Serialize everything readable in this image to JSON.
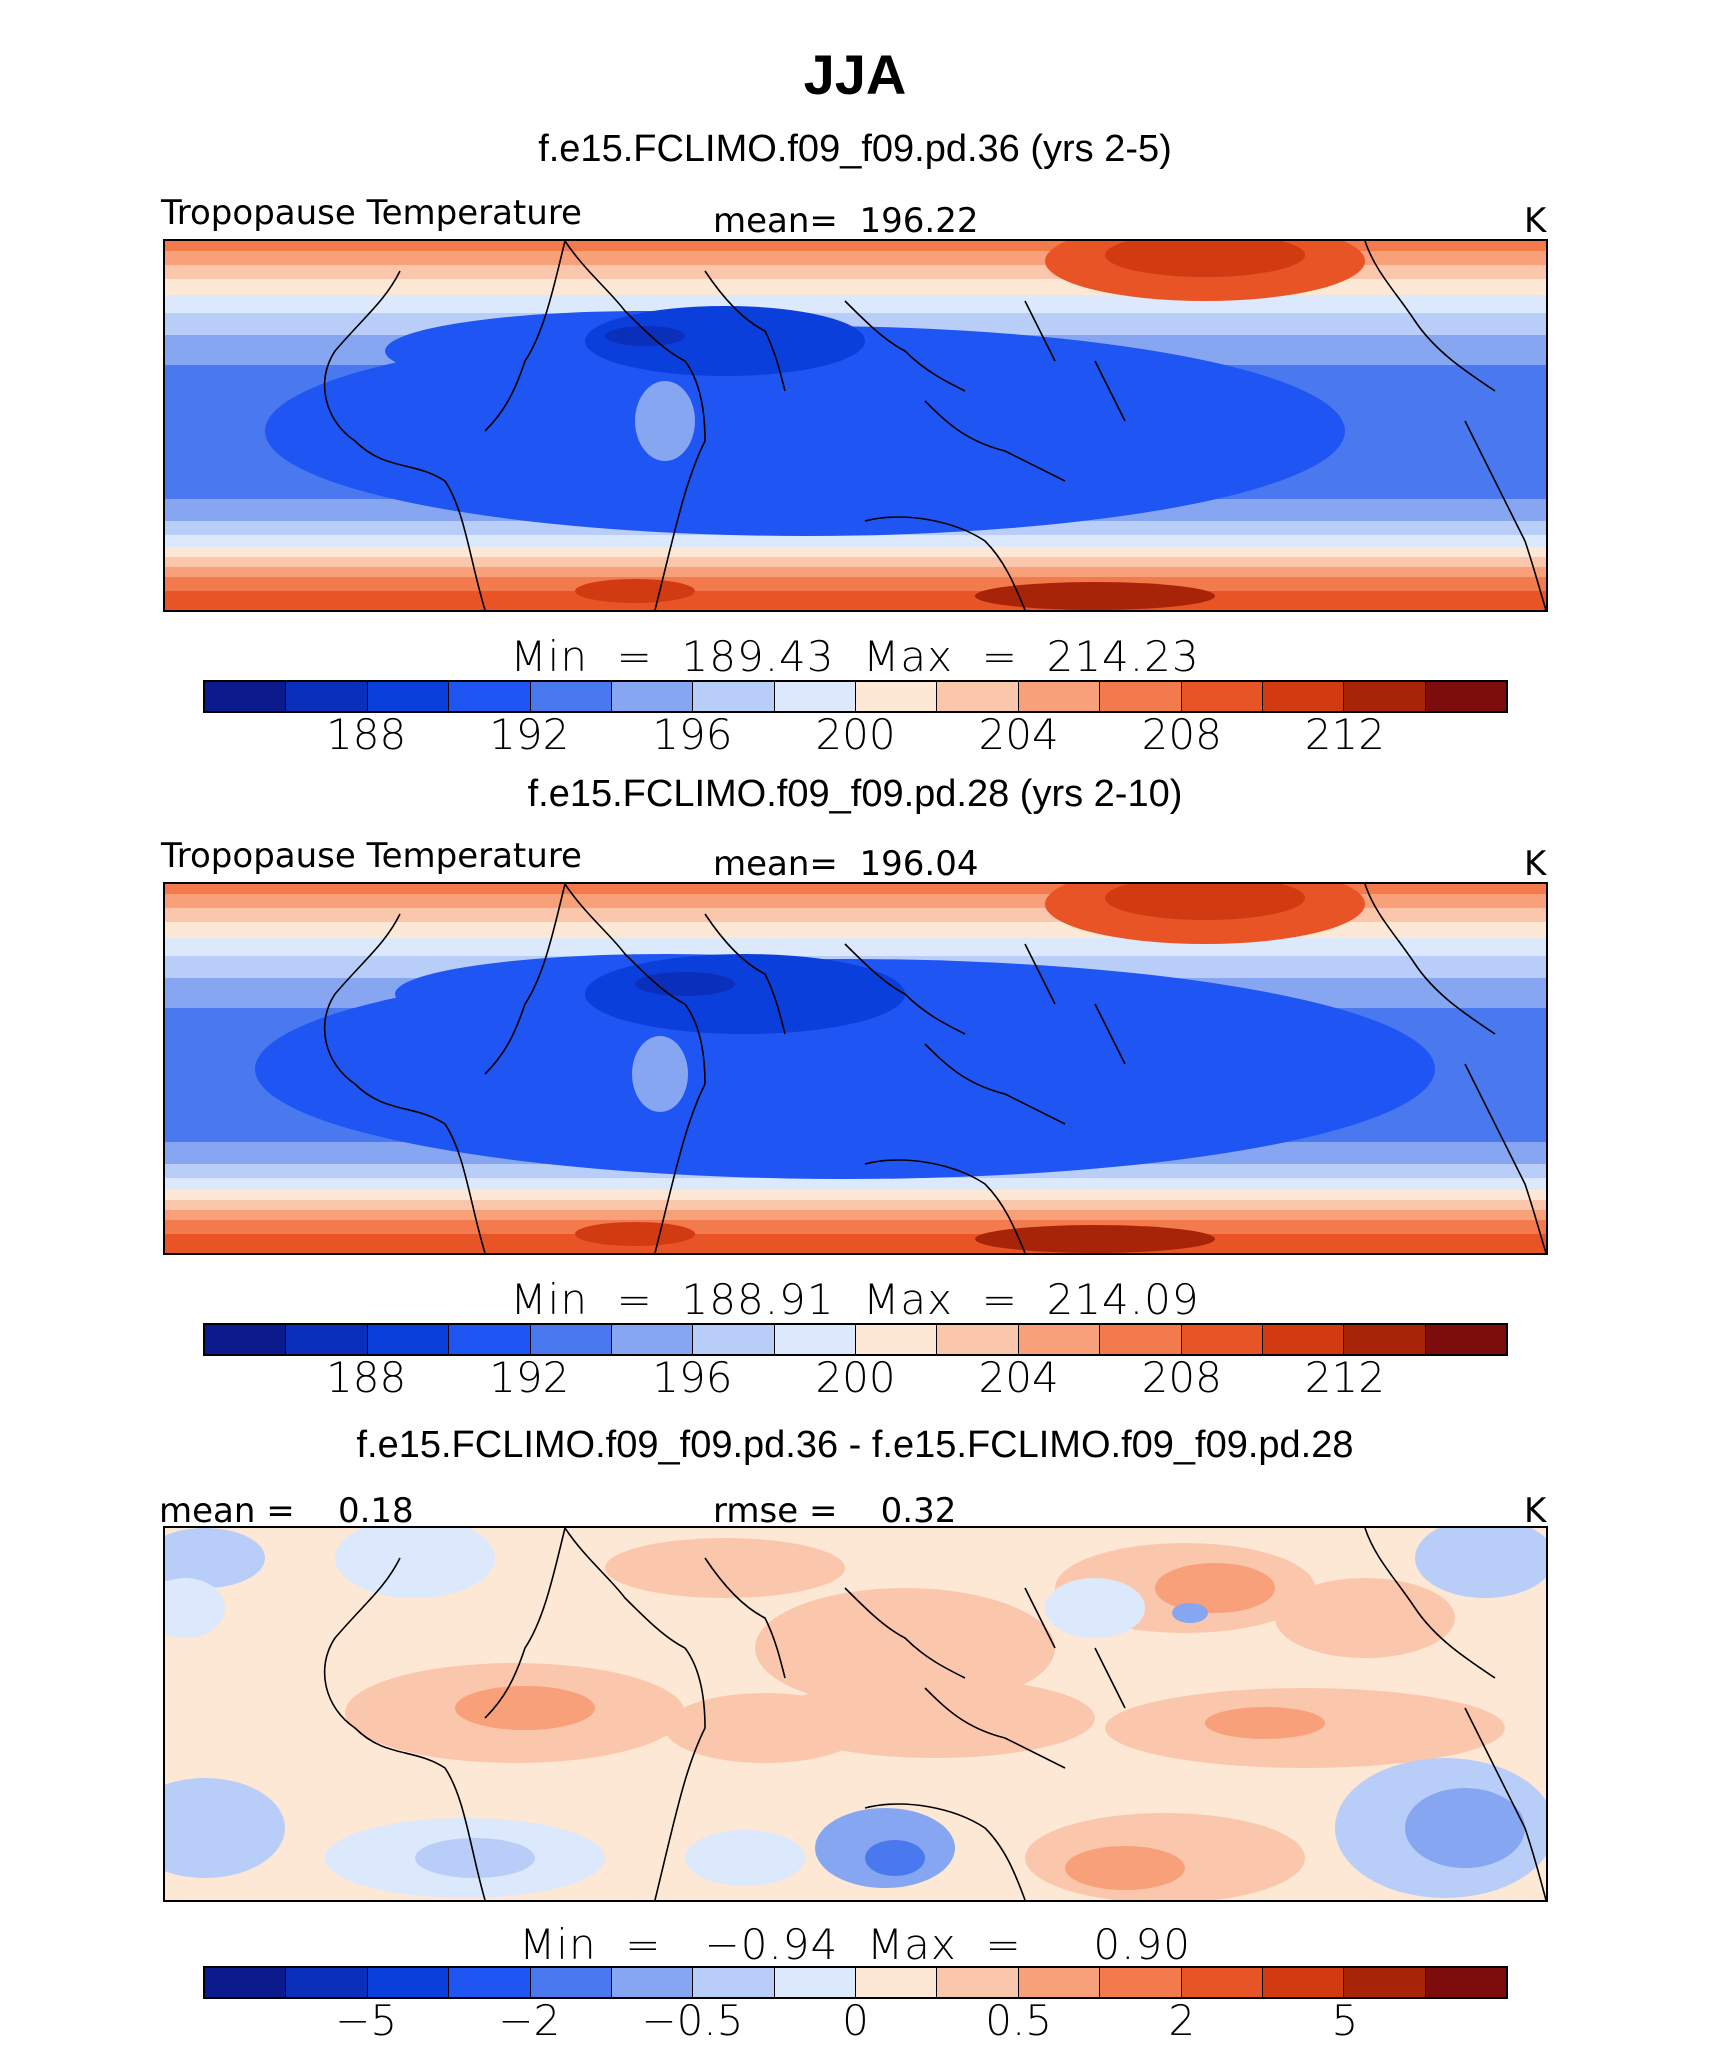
{
  "title": "JJA",
  "colors": [
    "#0b1a8c",
    "#0a2fbb",
    "#0b3fdc",
    "#1f55f2",
    "#4a78ef",
    "#86a6f2",
    "#b8cdf8",
    "#dce8fb",
    "#fde8d6",
    "#fbc7ac",
    "#f8a07a",
    "#f27a4d",
    "#e95427",
    "#d23a12",
    "#a72408",
    "#7d0c0c"
  ],
  "panels": [
    {
      "subtitle": "f.e15.FCLIMO.f09_f09.pd.36 (yrs 2-5)",
      "left_label": "Tropopause Temperature",
      "center_label": "mean=  196.22",
      "units": "K",
      "minmax": "Min  =  189.43  Max  =  214.23",
      "colorbar_ticks": [
        "188",
        "192",
        "196",
        "200",
        "204",
        "208",
        "212"
      ]
    },
    {
      "subtitle": "f.e15.FCLIMO.f09_f09.pd.28 (yrs 2-10)",
      "left_label": "Tropopause Temperature",
      "center_label": "mean=  196.04",
      "units": "K",
      "minmax": "Min  =  188.91  Max  =  214.09",
      "colorbar_ticks": [
        "188",
        "192",
        "196",
        "200",
        "204",
        "208",
        "212"
      ]
    },
    {
      "subtitle": "f.e15.FCLIMO.f09_f09.pd.36 - f.e15.FCLIMO.f09_f09.pd.28",
      "left_label": "mean =    0.18",
      "center_label": "rmse =    0.32",
      "units": "K",
      "minmax": "Min  =   −0.94  Max  =     0.90",
      "colorbar_ticks": [
        "−5",
        "−2",
        "−0.5",
        "0",
        "0.5",
        "2",
        "5"
      ]
    }
  ]
}
